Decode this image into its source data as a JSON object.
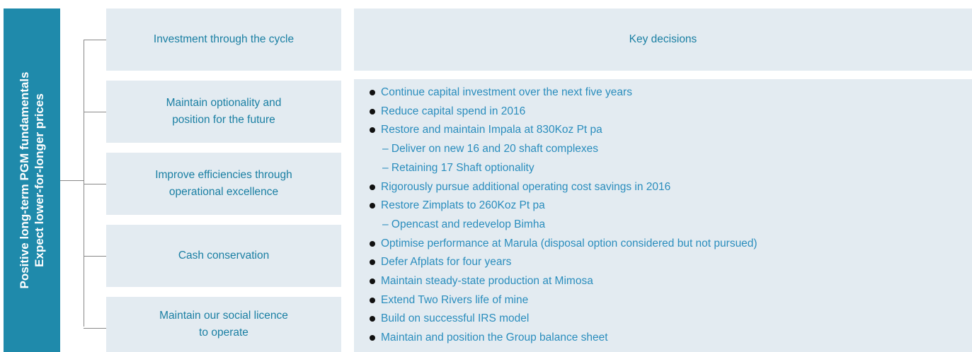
{
  "side": {
    "lines": [
      "Positive long-term PGM fundamentals",
      "Expect lower-for-longer prices"
    ]
  },
  "pillars": [
    {
      "lines": [
        "Investment through the cycle"
      ]
    },
    {
      "lines": [
        "Maintain optionality and",
        "position for the future"
      ]
    },
    {
      "lines": [
        "Improve efficiencies through",
        "operational excellence"
      ]
    },
    {
      "lines": [
        "Cash conservation"
      ]
    },
    {
      "lines": [
        "Maintain our social licence",
        "to operate"
      ]
    }
  ],
  "decisions": {
    "header": "Key decisions",
    "items": [
      {
        "text": "Continue capital investment over the next five years",
        "sub": false
      },
      {
        "text": "Reduce capital spend in 2016",
        "sub": false
      },
      {
        "text": "Restore and maintain Impala at 830Koz Pt pa",
        "sub": false
      },
      {
        "text": "– Deliver on new 16 and 20 shaft complexes",
        "sub": true
      },
      {
        "text": "– Retaining 17 Shaft optionality",
        "sub": true
      },
      {
        "text": "Rigorously pursue additional operating cost savings in 2016",
        "sub": false
      },
      {
        "text": "Restore Zimplats to 260Koz Pt pa",
        "sub": false
      },
      {
        "text": "– Opencast and redevelop Bimha",
        "sub": true
      },
      {
        "text": "Optimise performance at Marula (disposal option considered but not pursued)",
        "sub": false
      },
      {
        "text": "Defer Afplats for four years",
        "sub": false
      },
      {
        "text": "Maintain steady-state production at Mimosa",
        "sub": false
      },
      {
        "text": "Extend Two Rivers life of mine",
        "sub": false
      },
      {
        "text": "Build on successful IRS model",
        "sub": false
      },
      {
        "text": "Maintain and position the Group balance sheet",
        "sub": false
      }
    ]
  }
}
